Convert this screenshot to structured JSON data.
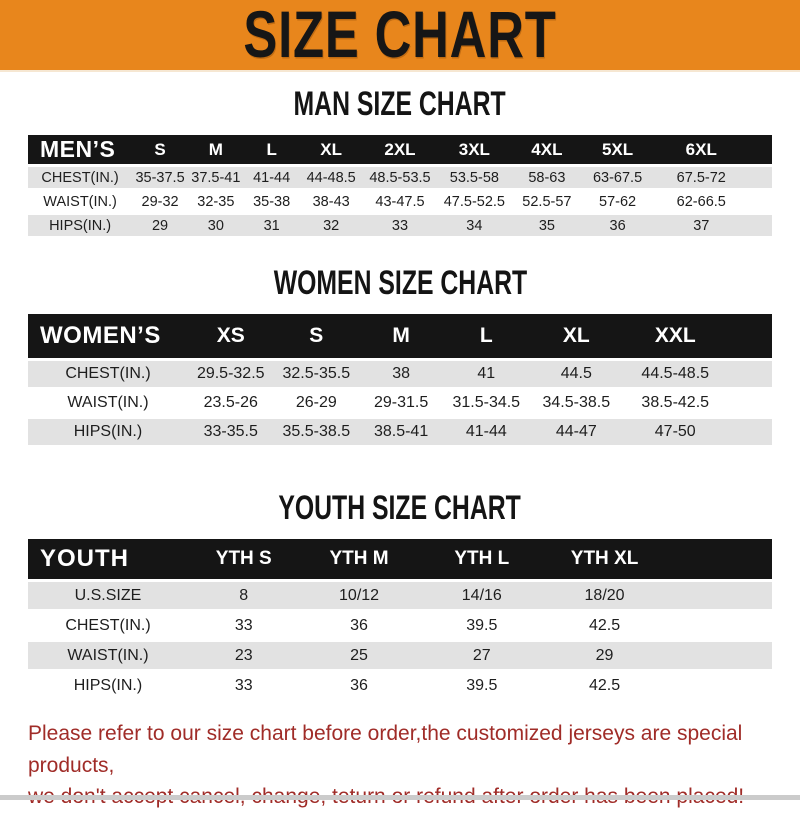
{
  "banner": {
    "title": "SIZE CHART"
  },
  "colors": {
    "banner_bg": "#E8861C",
    "bar_bg": "#151515",
    "row_shaded": "#E2E2E2",
    "note_red": "#A02C28"
  },
  "sections": [
    {
      "heading": "MAN SIZE CHART",
      "label": "MEN’S",
      "columns": [
        "S",
        "M",
        "L",
        "XL",
        "2XL",
        "3XL",
        "4XL",
        "5XL",
        "6XL"
      ],
      "rows": [
        {
          "label": "CHEST(IN.)",
          "values": [
            "35-37.5",
            "37.5-41",
            "41-44",
            "44-48.5",
            "48.5-53.5",
            "53.5-58",
            "58-63",
            "63-67.5",
            "67.5-72"
          ]
        },
        {
          "label": "WAIST(IN.)",
          "values": [
            "29-32",
            "32-35",
            "35-38",
            "38-43",
            "43-47.5",
            "47.5-52.5",
            "52.5-57",
            "57-62",
            "62-66.5"
          ]
        },
        {
          "label": "HIPS(IN.)",
          "values": [
            "29",
            "30",
            "31",
            "32",
            "33",
            "34",
            "35",
            "36",
            "37"
          ]
        }
      ]
    },
    {
      "heading": "WOMEN SIZE CHART",
      "label": "WOMEN’S",
      "columns": [
        "XS",
        "S",
        "M",
        "L",
        "XL",
        "XXL"
      ],
      "rows": [
        {
          "label": "CHEST(IN.)",
          "values": [
            "29.5-32.5",
            "32.5-35.5",
            "38",
            "41",
            "44.5",
            "44.5-48.5"
          ]
        },
        {
          "label": "WAIST(IN.)",
          "values": [
            "23.5-26",
            "26-29",
            "29-31.5",
            "31.5-34.5",
            "34.5-38.5",
            "38.5-42.5"
          ]
        },
        {
          "label": "HIPS(IN.)",
          "values": [
            "33-35.5",
            "35.5-38.5",
            "38.5-41",
            "41-44",
            "44-47",
            "47-50"
          ]
        }
      ]
    },
    {
      "heading": "YOUTH SIZE CHART",
      "label": "YOUTH",
      "columns": [
        "YTH S",
        "YTH M",
        "YTH L",
        "YTH XL"
      ],
      "rows": [
        {
          "label": "U.S.SIZE",
          "values": [
            "8",
            "10/12",
            "14/16",
            "18/20"
          ]
        },
        {
          "label": "CHEST(IN.)",
          "values": [
            "33",
            "36",
            "39.5",
            "42.5"
          ]
        },
        {
          "label": "WAIST(IN.)",
          "values": [
            "23",
            "25",
            "27",
            "29"
          ]
        },
        {
          "label": "HIPS(IN.)",
          "values": [
            "33",
            "36",
            "39.5",
            "42.5"
          ]
        }
      ]
    }
  ],
  "footer": {
    "line1": "Please refer to our size chart before order,the customized jerseys are special products,",
    "line2": "we don't accept cancel, change, teturn or refund after order has been placed!"
  }
}
